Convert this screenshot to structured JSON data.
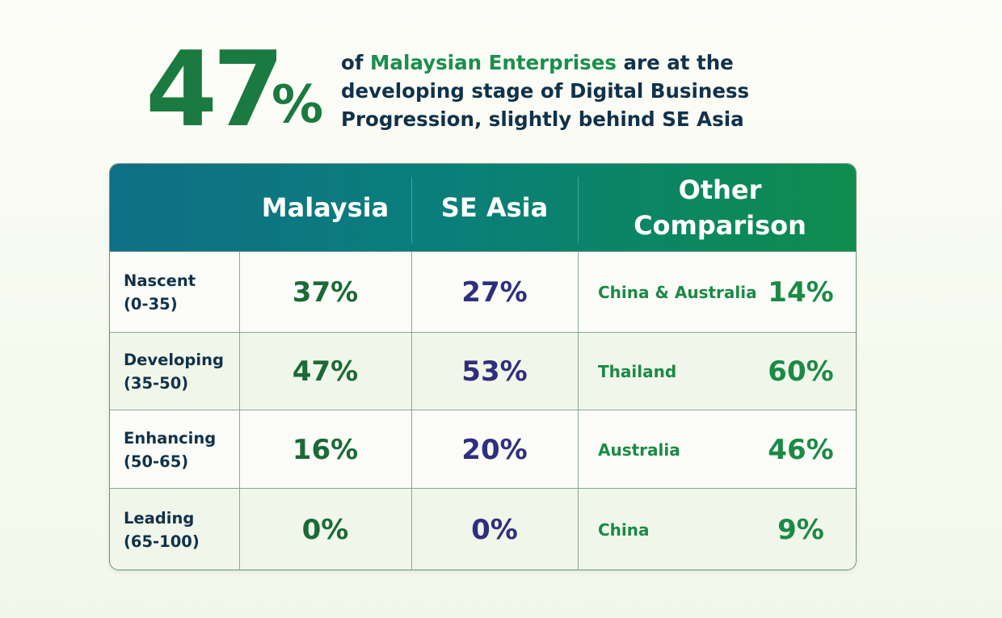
{
  "headline": {
    "number": "47",
    "percent_sign": "%",
    "text_prefix": "of ",
    "text_highlight": "Malaysian Enterprises",
    "text_suffix": " are at the developing stage of Digital Business Progression, slightly behind SE Asia"
  },
  "colors": {
    "accent_green": "#1b7a3f",
    "header_gradient_start": "#0f6f86",
    "header_gradient_end": "#0e8c4e",
    "se_asia_value": "#2f2f7e",
    "dark_text": "#10324a"
  },
  "chart_data": {
    "type": "table",
    "columns": [
      "",
      "Malaysia",
      "SE Asia",
      "Other Comparison"
    ],
    "rows": [
      {
        "level": "Nascent",
        "range": "(0-35)",
        "malaysia": "37%",
        "se_asia": "27%",
        "other_name": "China & Australia",
        "other_value": "14%"
      },
      {
        "level": "Developing",
        "range": "(35-50)",
        "malaysia": "47%",
        "se_asia": "53%",
        "other_name": "Thailand",
        "other_value": "60%"
      },
      {
        "level": "Enhancing",
        "range": "(50-65)",
        "malaysia": "16%",
        "se_asia": "20%",
        "other_name": "Australia",
        "other_value": "46%"
      },
      {
        "level": "Leading",
        "range": "(65-100)",
        "malaysia": "0%",
        "se_asia": "0%",
        "other_name": "China",
        "other_value": "9%"
      }
    ]
  }
}
